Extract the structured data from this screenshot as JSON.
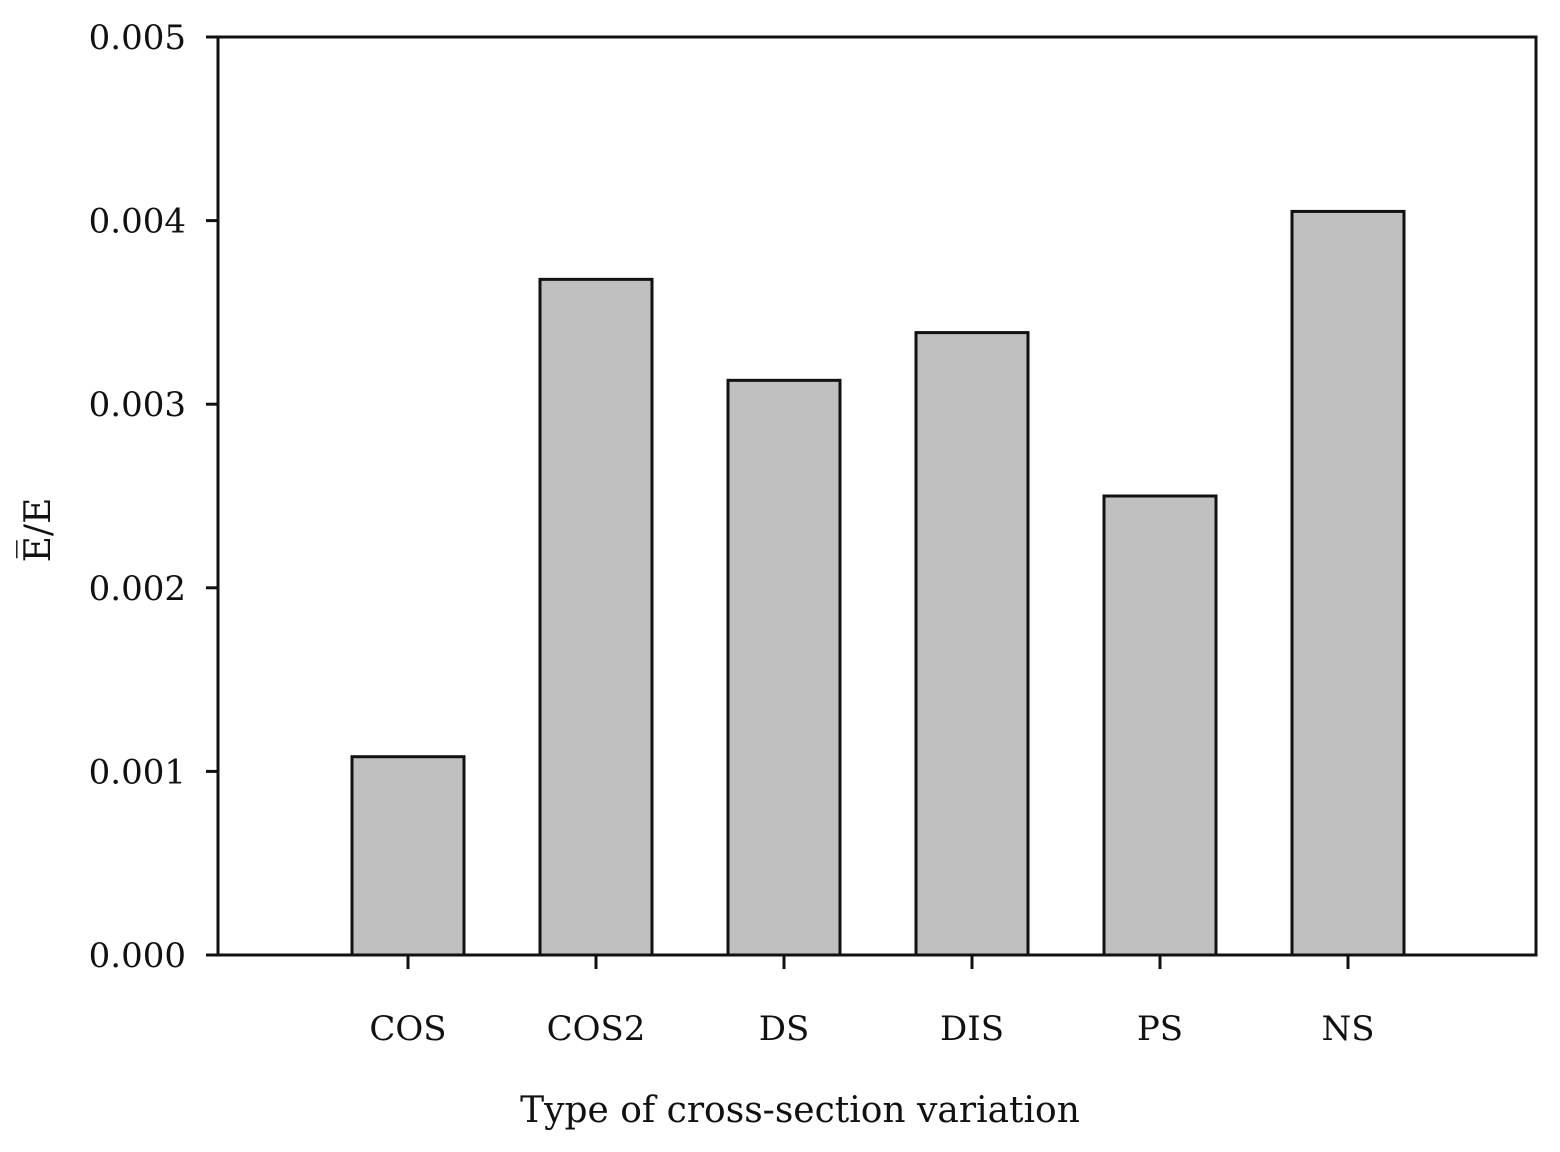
{
  "chart_data": {
    "type": "bar",
    "categories": [
      "COS",
      "COS2",
      "DS",
      "DIS",
      "PS",
      "NS"
    ],
    "values": [
      0.00108,
      0.00368,
      0.00313,
      0.00339,
      0.0025,
      0.00405
    ],
    "xlabel": "Type of cross-section variation",
    "ylabel": "E̅/E",
    "ylim": [
      0,
      0.005
    ],
    "yticks": [
      "0.000",
      "0.001",
      "0.002",
      "0.003",
      "0.004",
      "0.005"
    ],
    "grid": false,
    "bar_color": "#c0c0c0",
    "edge_color": "#111111"
  }
}
